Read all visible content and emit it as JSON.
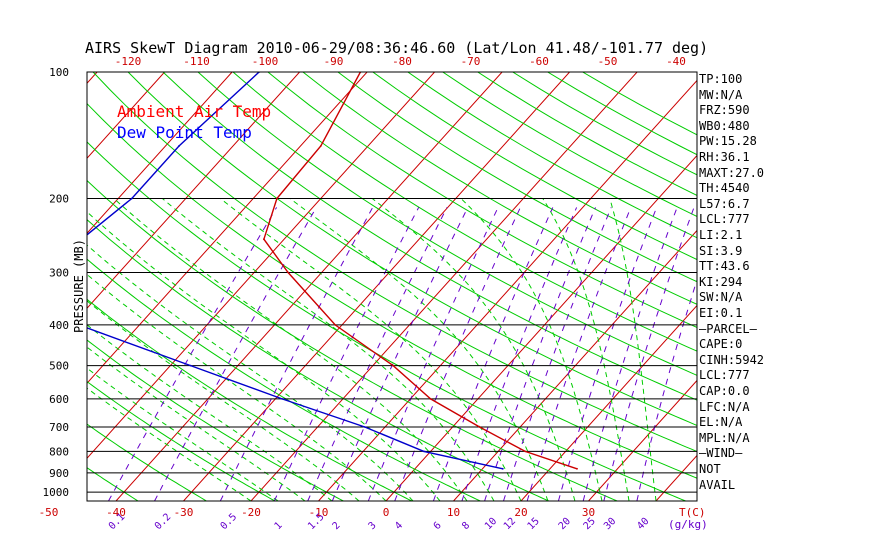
{
  "chart_data": {
    "type": "line",
    "title": "AIRS SkewT Diagram 2010-06-29/08:36:46.60 (Lat/Lon 41.48/-101.77 deg)",
    "ylabel": "PRESSURE (MB)",
    "xlabel": "T(C)",
    "mixing_ratio_unit": "(g/kg)",
    "ylim": [
      1050,
      100
    ],
    "y_scale": "log",
    "x_bottom_ticks": [
      "-50",
      "-40",
      "-30",
      "-20",
      "-10",
      "0",
      "10",
      "20",
      "30"
    ],
    "x_top_ticks": [
      "-120",
      "-110",
      "-100",
      "-90",
      "-80",
      "-70",
      "-60",
      "-50",
      "-40"
    ],
    "y_ticks": [
      "100",
      "200",
      "300",
      "400",
      "500",
      "600",
      "700",
      "800",
      "900",
      "1000"
    ],
    "mixing_ratio_labels": [
      "0.1",
      "0.2",
      "0.5",
      "1",
      "1.5",
      "2",
      "3",
      "4",
      "6",
      "8",
      "10",
      "12",
      "15",
      "20",
      "25",
      "30",
      "40"
    ],
    "legend": [
      {
        "label": "Ambient Air Temp",
        "color": "#ff0000"
      },
      {
        "label": "Dew Point Temp",
        "color": "#0000ff"
      }
    ],
    "series": [
      {
        "name": "Ambient Air Temp",
        "color": "#cc0000",
        "pressure": [
          100,
          150,
          200,
          250,
          300,
          400,
          500,
          600,
          700,
          800,
          880
        ],
        "temperature": [
          -61,
          -57,
          -56.5,
          -53,
          -45,
          -31,
          -17,
          -7,
          4,
          14,
          24
        ]
      },
      {
        "name": "Dew Point Temp",
        "color": "#0000cc",
        "pressure": [
          100,
          150,
          200,
          250,
          300,
          400,
          500,
          600,
          700,
          800,
          880
        ],
        "temperature": [
          -76,
          -78,
          -78,
          -80,
          -81,
          -69,
          -47,
          -29,
          -13,
          -1,
          13
        ]
      }
    ],
    "grid": true
  },
  "sidebar": {
    "items": [
      "TP:100",
      "MW:N/A",
      "FRZ:590",
      "WB0:480",
      "PW:15.28",
      "RH:36.1",
      "MAXT:27.0",
      "TH:4540",
      "L57:6.7",
      "LCL:777",
      "LI:2.1",
      "SI:3.9",
      "TT:43.6",
      "KI:294",
      "SW:N/A",
      "EI:0.1",
      "—PARCEL—",
      "CAPE:0",
      "CINH:5942",
      "LCL:777",
      "CAP:0.0",
      "LFC:N/A",
      "EL:N/A",
      "MPL:N/A",
      "—WIND—",
      "NOT",
      "AVAIL"
    ]
  },
  "colors": {
    "isotherm": "#cc0000",
    "dry_adiabat": "#00cc00",
    "moist_adiabat": "#00cc00",
    "mixing_ratio": "#6600cc",
    "axis_text_red": "#cc0000",
    "isobar": "#000000"
  }
}
